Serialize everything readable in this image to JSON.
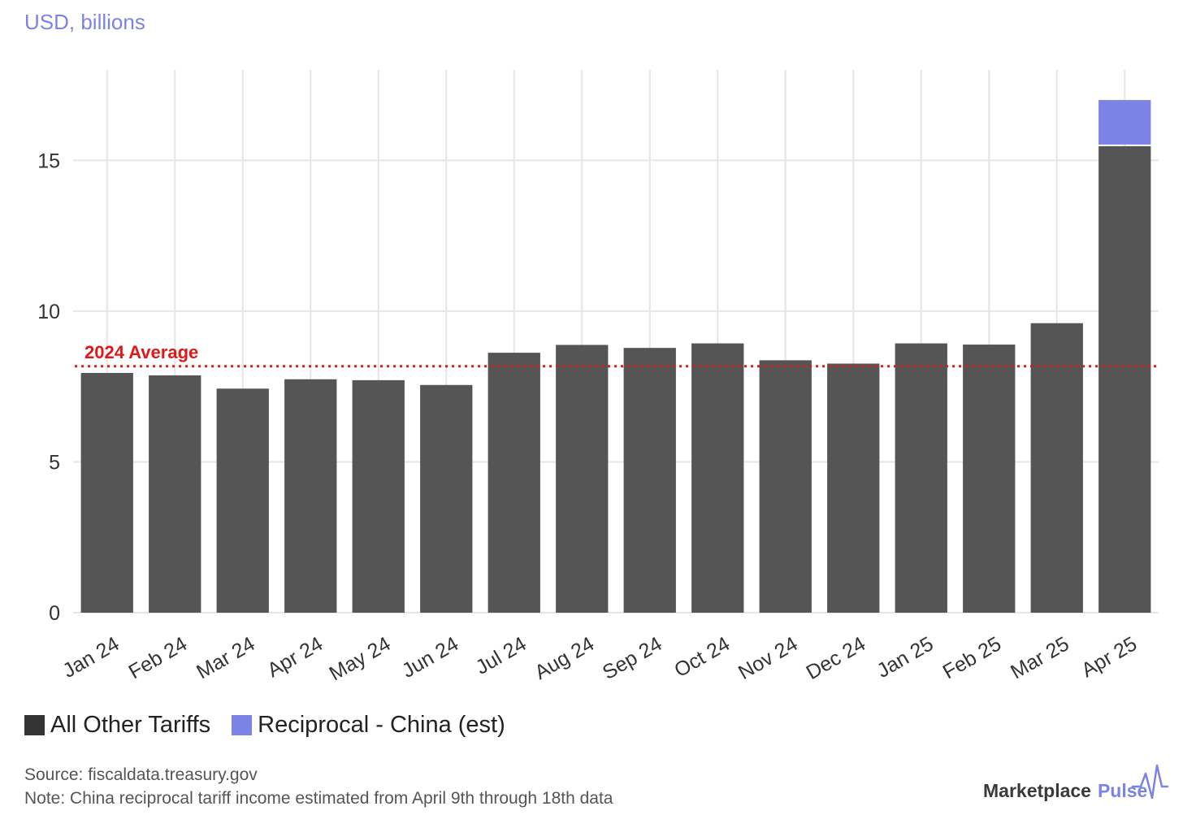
{
  "header": {
    "subtitle": "USD, billions"
  },
  "chart_data": {
    "type": "bar",
    "stacked": true,
    "categories": [
      "Jan 24",
      "Feb 24",
      "Mar 24",
      "Apr 24",
      "May 24",
      "Jun 24",
      "Jul 24",
      "Aug 24",
      "Sep 24",
      "Oct 24",
      "Nov 24",
      "Dec 24",
      "Jan 25",
      "Feb 25",
      "Mar 25",
      "Apr 25"
    ],
    "series": [
      {
        "name": "All Other Tariffs",
        "color": "#555555",
        "values": [
          7.95,
          7.87,
          7.43,
          7.74,
          7.71,
          7.55,
          8.62,
          8.88,
          8.78,
          8.93,
          8.37,
          8.26,
          8.93,
          8.89,
          9.6,
          15.47
        ]
      },
      {
        "name": "Reciprocal - China (est)",
        "color": "#7b84e6",
        "values": [
          0,
          0,
          0,
          0,
          0,
          0,
          0,
          0,
          0,
          0,
          0,
          0,
          0,
          0,
          0,
          1.53
        ]
      }
    ],
    "yticks": [
      0,
      5,
      10,
      15
    ],
    "ylim": [
      0,
      18
    ],
    "grid": true,
    "legend_position": "bottom-left",
    "reference_line": {
      "label": "2024 Average",
      "value": 8.17,
      "color": "#e01818"
    }
  },
  "legend": {
    "items": [
      {
        "label": "All Other Tariffs",
        "color": "#333333"
      },
      {
        "label": "Reciprocal - China (est)",
        "color": "#7b84e6"
      }
    ]
  },
  "footer": {
    "source": "Source: fiscaldata.treasury.gov",
    "note": "Note: China reciprocal tariff income estimated from April 9th through 18th data"
  },
  "brand": {
    "name_part1": "Marketplace",
    "name_part2": "Pulse",
    "icon": "pulse-icon"
  }
}
